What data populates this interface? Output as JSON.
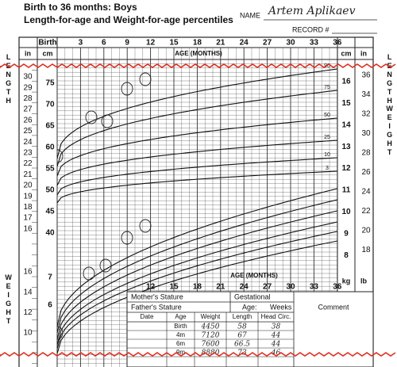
{
  "header": {
    "title": "Birth to 36 months: Boys",
    "subtitle": "Length-for-age and Weight-for-age percentiles",
    "name_label": "NAME",
    "name_value": "Artem Aplikaev",
    "record_label": "RECORD #"
  },
  "top_axis": {
    "ages": [
      "Birth",
      3,
      6,
      9,
      12,
      15,
      18,
      21,
      24,
      27,
      30,
      33,
      36
    ],
    "label": "AGE (MONTHS)",
    "left_units": [
      "in",
      "cm"
    ],
    "right_units": [
      "cm",
      "in"
    ]
  },
  "left_length": {
    "label": "LENGTH",
    "in": [
      30,
      29,
      28,
      27,
      26,
      25,
      24,
      23,
      22,
      21,
      20,
      19,
      18,
      17,
      16
    ],
    "cm": [
      75,
      70,
      65,
      60,
      55,
      50,
      45,
      40
    ]
  },
  "right": {
    "length_label": "LENGTH",
    "weight_label": "WEIGHT",
    "kg": [
      16,
      15,
      14,
      13,
      12,
      11,
      10,
      9,
      8
    ],
    "lb": [
      36,
      34,
      32,
      30,
      28,
      26,
      24,
      22,
      20,
      18
    ],
    "percentiles": [
      "90",
      "75",
      "50",
      "25",
      "10",
      "3"
    ]
  },
  "bottom_axis": {
    "ages": [
      12,
      15,
      18,
      21,
      24,
      27,
      30,
      33,
      36
    ],
    "label": "AGE (MONTHS)",
    "units": [
      "kg",
      "lb"
    ]
  },
  "left_weight": {
    "label": "WEIGHT",
    "kg": [
      7,
      6
    ],
    "lb": [
      16,
      14,
      12,
      10
    ]
  },
  "table": {
    "mother": "Mother's Stature",
    "father": "Father's Stature",
    "gestational": "Gestational",
    "age_label": "Age:",
    "weeks_label": "Weeks",
    "comment": "Comment",
    "headers": [
      "Date",
      "Age",
      "Weight",
      "Length",
      "Head Circ."
    ],
    "rows": [
      [
        "",
        "Birth",
        "4450",
        "58",
        "38"
      ],
      [
        "",
        "4m",
        "7120",
        "67",
        "44"
      ],
      [
        "",
        "6m",
        "7600",
        "66.5",
        "44"
      ],
      [
        "",
        "9m",
        "8880",
        "73",
        "46"
      ]
    ]
  }
}
